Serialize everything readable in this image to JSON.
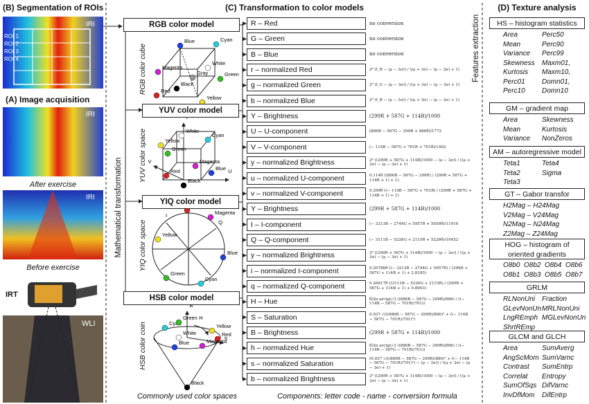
{
  "panel_b": {
    "title": "(B) Segmentation of ROIs",
    "image_label": "IRI",
    "rois": [
      "ROI 1",
      "ROI 2",
      "ROI 3",
      "ROI 4"
    ]
  },
  "panel_a": {
    "title": "(A) Image acquisition",
    "after_label": "IRI",
    "after_caption": "After exercise",
    "before_label": "IRI",
    "before_caption": "Before exercise",
    "camera_label": "IRT",
    "wli_label": "WLI"
  },
  "panel_c": {
    "title": "(C) Transformation to color models",
    "side_label": "Mathematical transformation",
    "features_label": "Features extraction",
    "footer_left": "Commonly used color spaces",
    "footer_right": "Components: letter code - name - conversion formula",
    "models": [
      {
        "name": "RGB color model",
        "space": "RGB color cube",
        "points": [
          "Blue",
          "Cyan",
          "Magenta",
          "White",
          "Gray",
          "Black",
          "Green",
          "Red",
          "Yellow"
        ],
        "components": [
          {
            "label": "R – Red",
            "formula": "no conversion"
          },
          {
            "label": "G – Green",
            "formula": "no conversion"
          },
          {
            "label": "B – Blue",
            "formula": "no conversion"
          },
          {
            "label": "r – normalized Red",
            "formula": "2⁸ (I_R − (μ − 3σ)) / ((μ + 3σ) − (μ − 3σ) + 1)"
          },
          {
            "label": "g – normalized Green",
            "formula": "2⁸ (I_G − (μ − 3σ)) / ((μ + 3σ) − (μ − 3σ) + 1)"
          },
          {
            "label": "b – normalized Blue",
            "formula": "2⁸ (I_B − (μ − 3σ)) / ((μ + 3σ) − (μ − 3σ) + 1)"
          }
        ]
      },
      {
        "name": "YUV color model",
        "space": "YUV color space",
        "points": [
          "Y",
          "White",
          "Yellow",
          "Cyan",
          "Green",
          "Magenta",
          "Red",
          "Blue",
          "Black",
          "V",
          "U"
        ],
        "components": [
          {
            "label": "Y – Brightness",
            "formula": "(299R + 587G + 114B)/1000"
          },
          {
            "label": "U – U-component",
            "formula": "(886B − 587G − 299R + 886θ)/1772"
          },
          {
            "label": "V – V-component",
            "formula": "(− 114B − 587G + 701R + 701θ)/1402"
          },
          {
            "label": "y – normalized Brightness",
            "formula": "2⁸ ((299R + 587G + 114B)/1000 − (μ − 3σ)) / ((μ + 3σ) − (μ − 3σ) + 1)"
          },
          {
            "label": "u – normalized U-component",
            "formula": "0.114θ ((886B − 587G − 299R) / (299R + 587G + 114B + 1) + 1)"
          },
          {
            "label": "v – normalized V-component",
            "formula": "0.299θ ((− 114B − 587G + 701R) / (299R + 587G + 114B + 1) + 1)"
          }
        ]
      },
      {
        "name": "YIQ color model",
        "space": "YIQ color space",
        "points": [
          "Red",
          "Magenta",
          "I",
          "Q",
          "Yellow",
          "Blue",
          "Green",
          "Cyan"
        ],
        "components": [
          {
            "label": "Y – Brightness",
            "formula": "(299R + 587G + 114B)/1000"
          },
          {
            "label": "I – I-component",
            "formula": "(− 3213B − 2744G + 5957R + 5958θ)/11916"
          },
          {
            "label": "Q – Q-component",
            "formula": "(− 3111B − 5226G + 2115R + 5226θ)/10452"
          },
          {
            "label": "y – normalized Brightness",
            "formula": "2⁸ ((299R + 587G + 114B)/1000 − (μ − 3σ)) / ((μ + 3σ) − (μ − 3σ) + 1)"
          },
          {
            "label": "i – normalized I-component",
            "formula": "0.20786θ ((− 3213B − 2744G + 5957R) / (299R + 587G + 114B + 1) + 2.8185)"
          },
          {
            "label": "q – normalized Q-component",
            "formula": "0.26817θ ((3111B − 5226G + 2115R) / (299R + 587G + 114B + 1) + 0.8903)"
          }
        ]
      },
      {
        "name": "HSB color model",
        "space": "HSB color coin",
        "points": [
          "B",
          "Cyan",
          "Green",
          "H",
          "Yellow",
          "White",
          "Red",
          "S",
          "Blue",
          "Magenta",
          "Black"
        ],
        "components": [
          {
            "label": "H – Hue",
            "formula": "θ/2π arctg(√3 ((886B − 587G − 299R)/886) / ((− 114B − 587G − 701R)/701))"
          },
          {
            "label": "S – Saturation",
            "formula": "0.937 √(((886B − 587G − 299R)/886)² + ((− 114B − 587G − 701R)/701)²)"
          },
          {
            "label": "B – Brightness",
            "formula": "(299R + 587G + 114B)/1000"
          },
          {
            "label": "h – normalized Hue",
            "formula": "θ/2π arctg(√3 ((886B − 587G − 299R)/886) / ((− 114B − 587G − 701R)/701))"
          },
          {
            "label": "s – normalized Saturation",
            "formula": "(0.937 √(((886B − 587G − 299R)/886)² + ((− 114B − 587G − 701R)/701)²) − (μ − 3σ)) / ((μ + 3σ) − (μ − 3σ) + 1)"
          },
          {
            "label": "b – normalized Brightness",
            "formula": "2⁸ ((299R + 587G + 114B)/1000 − (μ − 3σ)) / ((μ + 3σ) − (μ − 3σ) + 1)"
          }
        ]
      }
    ]
  },
  "panel_d": {
    "title": "(D) Texture analysis",
    "groups": [
      {
        "title": "HS – histogram statistics",
        "items": [
          "Area",
          "Perc50",
          "Mean",
          "Perc90",
          "Variance",
          "Perc99",
          "Skewness",
          "Maxm01,",
          "Kurtosis",
          "Maxm10,",
          "Perc01",
          "Domn01,",
          "Perc10",
          "Domn10"
        ]
      },
      {
        "title": "GM – gradient map",
        "items": [
          "Area",
          "Skewness",
          "Mean",
          "Kurtosis",
          "Variance",
          "NonZeros"
        ]
      },
      {
        "title": "AM – autoregressive model",
        "items": [
          "Teta1",
          "Teta4",
          "Teta2",
          "Sigma",
          "Teta3"
        ]
      },
      {
        "title": "GT – Gabor transfor",
        "items": [
          "H2Mag – H24Mag",
          "V2Mag – V24Mag",
          "N2Mag – N24Mag",
          "Z2Mag – Z24Mag"
        ]
      },
      {
        "title": "HOG – histogram of oriented gradients",
        "items": [
          "O8b0",
          "O8b2",
          "O8b4",
          "O8b6",
          "O8b1",
          "O8b3",
          "O8b5",
          "O8b7"
        ]
      },
      {
        "title": "GRLM",
        "items": [
          "RLNonUni",
          "Fraction",
          "GLevNonUn",
          "MRLNonUni",
          "LngREmph",
          "MGLevNonUn",
          "ShrtREmp"
        ]
      },
      {
        "title": "GLCM and GLCH",
        "items": [
          "Area",
          "SumAverg",
          "AngScMom",
          "SumVarnc",
          "Contrast",
          "SumEntrp",
          "Correlat",
          "Entropy",
          "SumOfSqs",
          "DifVarnc",
          "InvDfMom",
          "DifEntrp"
        ]
      }
    ]
  }
}
